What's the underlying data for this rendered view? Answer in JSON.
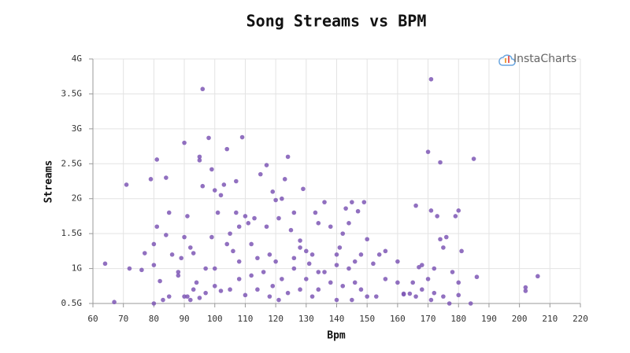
{
  "chart_data": {
    "type": "scatter",
    "title": "Song Streams vs BPM",
    "x_label": "Bpm",
    "y_label": "Streams",
    "watermark": "InstaCharts",
    "color": "#7e57b5",
    "grid": true,
    "xlim": [
      60,
      220
    ],
    "xticks": [
      60,
      70,
      80,
      90,
      100,
      110,
      120,
      130,
      140,
      150,
      160,
      170,
      180,
      190,
      200,
      210,
      220
    ],
    "ylim": [
      500000000.0,
      4000000000.0
    ],
    "yticks": [
      {
        "value": 500000000.0,
        "label": "0.5G"
      },
      {
        "value": 1000000000.0,
        "label": "1G"
      },
      {
        "value": 1500000000.0,
        "label": "1.5G"
      },
      {
        "value": 2000000000.0,
        "label": "2G"
      },
      {
        "value": 2500000000.0,
        "label": "2.5G"
      },
      {
        "value": 3000000000.0,
        "label": "3G"
      },
      {
        "value": 3500000000.0,
        "label": "3.5G"
      },
      {
        "value": 4000000000.0,
        "label": "4G"
      }
    ],
    "x": [
      64,
      67,
      71,
      72,
      76,
      77,
      79,
      80,
      80,
      80,
      81,
      81,
      82,
      83,
      84,
      84,
      85,
      86,
      88,
      89,
      90,
      90,
      91,
      91,
      92,
      93,
      94,
      95,
      95,
      96,
      96,
      97,
      98,
      99,
      100,
      99,
      101,
      102,
      103,
      104,
      105,
      107,
      107,
      108,
      109,
      110,
      111,
      113,
      115,
      117,
      117,
      119,
      120,
      121,
      122,
      123,
      124,
      125,
      126,
      128,
      129,
      130,
      131,
      133,
      134,
      136,
      138,
      140,
      141,
      142,
      143,
      144,
      145,
      147,
      148,
      149,
      150,
      152,
      154,
      156,
      160,
      162,
      166,
      167,
      170,
      171,
      171,
      172,
      173,
      174,
      174,
      175,
      176,
      179,
      180,
      181,
      185,
      186,
      184,
      202,
      202,
      206,
      85,
      88,
      90,
      92,
      93,
      95,
      97,
      100,
      102,
      105,
      108,
      110,
      112,
      114,
      116,
      118,
      119,
      121,
      122,
      124,
      126,
      128,
      130,
      132,
      134,
      136,
      138,
      140,
      142,
      145,
      146,
      148,
      150,
      153,
      156,
      160,
      162,
      164,
      166,
      168,
      170,
      171,
      172,
      175,
      177,
      178,
      180,
      180,
      118,
      120,
      112,
      114,
      106,
      108,
      100,
      104,
      126,
      128,
      132,
      134,
      140,
      144,
      146,
      165,
      168
    ],
    "values": [
      1070000000.0,
      520000000.0,
      2200000000.0,
      1000000000.0,
      980000000.0,
      1220000000.0,
      2280000000.0,
      1050000000.0,
      500000000.0,
      1350000000.0,
      2560000000.0,
      1600000000.0,
      820000000.0,
      550000000.0,
      2300000000.0,
      1480000000.0,
      1800000000.0,
      1200000000.0,
      900000000.0,
      1150000000.0,
      2800000000.0,
      1450000000.0,
      1750000000.0,
      600000000.0,
      1300000000.0,
      1220000000.0,
      800000000.0,
      2600000000.0,
      2550000000.0,
      3570000000.0,
      2180000000.0,
      1000000000.0,
      2870000000.0,
      2420000000.0,
      2120000000.0,
      1450000000.0,
      1800000000.0,
      2050000000.0,
      2200000000.0,
      2710000000.0,
      1500000000.0,
      2250000000.0,
      1800000000.0,
      1600000000.0,
      2880000000.0,
      1750000000.0,
      1650000000.0,
      1720000000.0,
      2350000000.0,
      2480000000.0,
      1600000000.0,
      2100000000.0,
      1980000000.0,
      1720000000.0,
      2000000000.0,
      2280000000.0,
      2600000000.0,
      1550000000.0,
      1800000000.0,
      1300000000.0,
      2140000000.0,
      1250000000.0,
      1070000000.0,
      1800000000.0,
      1650000000.0,
      1950000000.0,
      1600000000.0,
      1050000000.0,
      1300000000.0,
      1500000000.0,
      1860000000.0,
      1650000000.0,
      1950000000.0,
      1820000000.0,
      1200000000.0,
      1950000000.0,
      1420000000.0,
      1070000000.0,
      1200000000.0,
      1250000000.0,
      1100000000.0,
      630000000.0,
      1900000000.0,
      1020000000.0,
      2670000000.0,
      3710000000.0,
      1830000000.0,
      1000000000.0,
      1750000000.0,
      2520000000.0,
      1420000000.0,
      1300000000.0,
      1450000000.0,
      1750000000.0,
      1830000000.0,
      1250000000.0,
      2570000000.0,
      880000000.0,
      500000000.0,
      730000000.0,
      680000000.0,
      890000000.0,
      600000000.0,
      950000000.0,
      600000000.0,
      550000000.0,
      700000000.0,
      580000000.0,
      650000000.0,
      750000000.0,
      680000000.0,
      700000000.0,
      850000000.0,
      620000000.0,
      900000000.0,
      700000000.0,
      950000000.0,
      600000000.0,
      750000000.0,
      550000000.0,
      850000000.0,
      650000000.0,
      1000000000.0,
      700000000.0,
      850000000.0,
      600000000.0,
      700000000.0,
      950000000.0,
      800000000.0,
      550000000.0,
      750000000.0,
      550000000.0,
      800000000.0,
      700000000.0,
      600000000.0,
      600000000.0,
      850000000.0,
      800000000.0,
      640000000.0,
      640000000.0,
      600000000.0,
      700000000.0,
      850000000.0,
      550000000.0,
      650000000.0,
      600000000.0,
      500000000.0,
      950000000.0,
      800000000.0,
      620000000.0,
      1200000000.0,
      1100000000.0,
      1350000000.0,
      1150000000.0,
      1250000000.0,
      1100000000.0,
      1000000000.0,
      1350000000.0,
      1150000000.0,
      1400000000.0,
      1200000000.0,
      950000000.0,
      1200000000.0,
      1000000000.0,
      1100000000.0,
      800000000.0,
      1050000000.0
    ]
  }
}
